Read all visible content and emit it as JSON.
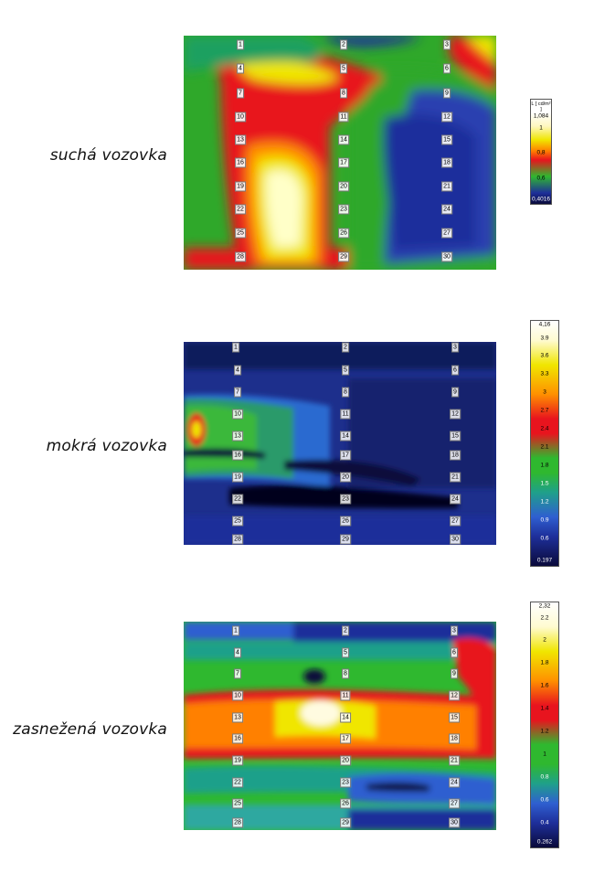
{
  "panels": [
    {
      "label": "suchá vozovka",
      "points": [
        "1",
        "2",
        "3",
        "4",
        "5",
        "6",
        "7",
        "8",
        "9",
        "10",
        "11",
        "12",
        "13",
        "14",
        "15",
        "16",
        "17",
        "18",
        "19",
        "20",
        "21",
        "22",
        "23",
        "24",
        "25",
        "26",
        "27",
        "28",
        "29",
        "30"
      ],
      "scale": {
        "unit": "L [ cd/m² ]",
        "ticks": [
          "1,084",
          "1",
          "0,8",
          "0,6",
          "0,4016"
        ]
      }
    },
    {
      "label": "mokrá vozovka",
      "points": [
        "1",
        "2",
        "3",
        "4",
        "5",
        "6",
        "7",
        "8",
        "9",
        "10",
        "11",
        "12",
        "13",
        "14",
        "15",
        "16",
        "17",
        "18",
        "19",
        "20",
        "21",
        "22",
        "23",
        "24",
        "25",
        "26",
        "27",
        "28",
        "29",
        "30"
      ],
      "scale": {
        "ticks": [
          "4,16",
          "3.9",
          "3.6",
          "3.3",
          "3",
          "2.7",
          "2.4",
          "2.1",
          "1.8",
          "1.5",
          "1.2",
          "0.9",
          "0.6",
          "0.197"
        ]
      }
    },
    {
      "label": "zasnežená vozovka",
      "points": [
        "1",
        "2",
        "3",
        "4",
        "5",
        "6",
        "7",
        "8",
        "9",
        "10",
        "11",
        "12",
        "13",
        "14",
        "15",
        "16",
        "17",
        "18",
        "19",
        "20",
        "21",
        "22",
        "23",
        "24",
        "25",
        "26",
        "27",
        "28",
        "29",
        "30"
      ],
      "scale": {
        "ticks": [
          "2,32",
          "2.2",
          "2",
          "1.8",
          "1.6",
          "1.4",
          "1.2",
          "1",
          "0.8",
          "0.6",
          "0.4",
          "0.262"
        ]
      }
    }
  ],
  "colors": {
    "palette": [
      "#0a0a3a",
      "#1e2f9a",
      "#2f5fd0",
      "#1fa08a",
      "#2fb82f",
      "#f0e600",
      "#ff8000",
      "#e8141e",
      "#ffffe0"
    ]
  }
}
